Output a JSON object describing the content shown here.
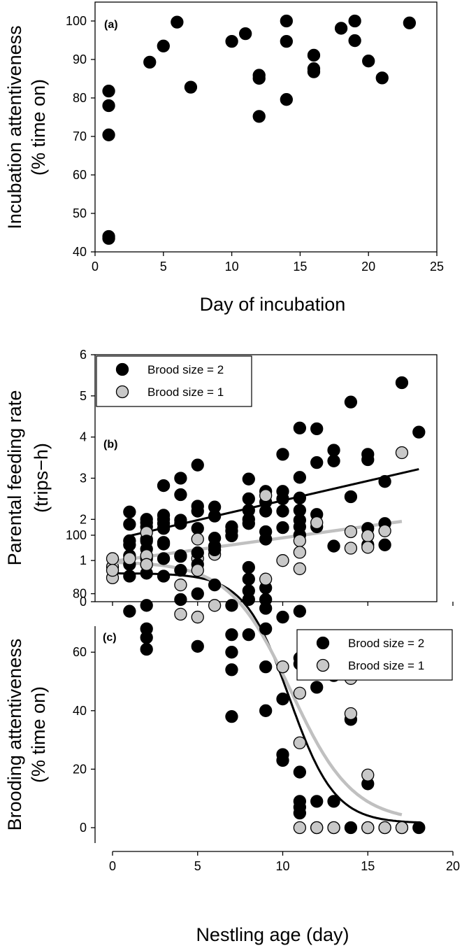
{
  "colors": {
    "brood2": "#000000",
    "brood1": "#c8c8c8",
    "fit2": "#000000",
    "fit1": "#c0c0c0"
  },
  "chart_data": [
    {
      "id": "a",
      "type": "scatter",
      "panel_label": "(a)",
      "xlabel": "Day of incubation",
      "ylabel_lines": [
        "Incubation attentiveness",
        "(% time on)"
      ],
      "xlim": [
        0,
        25
      ],
      "ylim": [
        40,
        105
      ],
      "xticks": [
        "0",
        "5",
        "10",
        "15",
        "20",
        "25"
      ],
      "yticks": [
        "40",
        "50",
        "60",
        "70",
        "80",
        "90",
        "100"
      ],
      "series": [
        {
          "name": "Incubation",
          "color": "#000000",
          "points": [
            [
              1,
              81.8
            ],
            [
              1,
              78
            ],
            [
              1,
              70.4
            ],
            [
              1,
              44
            ],
            [
              1,
              43.5
            ],
            [
              4,
              89.3
            ],
            [
              5,
              93.5
            ],
            [
              6,
              99.7
            ],
            [
              7,
              82.8
            ],
            [
              10,
              94.7
            ],
            [
              11,
              96.7
            ],
            [
              12,
              85.9
            ],
            [
              12,
              85.1
            ],
            [
              12,
              75.2
            ],
            [
              14,
              100
            ],
            [
              14,
              94.7
            ],
            [
              14,
              79.6
            ],
            [
              16,
              91.1
            ],
            [
              16,
              87.6
            ],
            [
              16,
              86.8
            ],
            [
              18,
              98.1
            ],
            [
              19,
              100
            ],
            [
              19,
              94.9
            ],
            [
              20,
              89.6
            ],
            [
              21,
              85.2
            ],
            [
              23,
              99.5
            ]
          ]
        }
      ]
    },
    {
      "id": "b",
      "type": "scatter",
      "panel_label": "(b)",
      "xlabel": "",
      "ylabel_lines": [
        "Parental feeding rate",
        "(trips−h)"
      ],
      "xlim": [
        0,
        20
      ],
      "ylim": [
        0,
        6
      ],
      "xticks": [
        "",
        "",
        "",
        "",
        ""
      ],
      "yticks": [
        "0",
        "1",
        "2",
        "3",
        "4",
        "5",
        "6"
      ],
      "legend": [
        "Brood size = 2",
        "Brood size = 1"
      ],
      "legend_position": "top-left",
      "series": [
        {
          "name": "Brood size = 2",
          "color": "#000000",
          "points": [
            [
              1,
              2.18
            ],
            [
              1,
              1.88
            ],
            [
              1,
              1.48
            ],
            [
              1,
              1.38
            ],
            [
              2,
              2.0
            ],
            [
              2,
              1.92
            ],
            [
              2,
              1.82
            ],
            [
              2,
              1.52
            ],
            [
              2,
              1.28
            ],
            [
              2,
              0.9
            ],
            [
              3,
              2.82
            ],
            [
              3,
              2.1
            ],
            [
              3,
              2.0
            ],
            [
              3,
              1.9
            ],
            [
              3,
              1.78
            ],
            [
              3,
              1.44
            ],
            [
              4,
              3.0
            ],
            [
              4,
              2.6
            ],
            [
              4,
              1.98
            ],
            [
              4,
              1.9
            ],
            [
              5,
              3.32
            ],
            [
              5,
              2.32
            ],
            [
              5,
              2.2
            ],
            [
              5,
              1.78
            ],
            [
              6,
              2.3
            ],
            [
              6,
              2.08
            ],
            [
              6,
              1.35
            ],
            [
              7,
              1.82
            ],
            [
              7,
              1.72
            ],
            [
              7,
              1.6
            ],
            [
              8,
              2.98
            ],
            [
              8,
              2.5
            ],
            [
              8,
              2.22
            ],
            [
              8,
              2.0
            ],
            [
              8,
              1.9
            ],
            [
              9,
              2.68
            ],
            [
              9,
              2.42
            ],
            [
              9,
              2.2
            ],
            [
              9,
              1.7
            ],
            [
              9,
              1.52
            ],
            [
              10,
              3.58
            ],
            [
              10,
              2.68
            ],
            [
              10,
              2.5
            ],
            [
              10,
              2.2
            ],
            [
              10,
              1.8
            ],
            [
              11,
              4.22
            ],
            [
              11,
              3.02
            ],
            [
              11,
              2.52
            ],
            [
              11,
              2.22
            ],
            [
              11,
              1.98
            ],
            [
              11,
              1.82
            ],
            [
              11,
              1.62
            ],
            [
              12,
              4.2
            ],
            [
              12,
              3.38
            ],
            [
              12,
              2.12
            ],
            [
              12,
              1.82
            ],
            [
              13,
              3.68
            ],
            [
              13,
              3.42
            ],
            [
              13,
              1.35
            ],
            [
              14,
              4.85
            ],
            [
              14,
              2.55
            ],
            [
              15,
              3.58
            ],
            [
              15,
              3.45
            ],
            [
              15,
              1.78
            ],
            [
              15,
              1.38
            ],
            [
              16,
              2.92
            ],
            [
              16,
              1.9
            ],
            [
              16,
              1.38
            ],
            [
              17,
              5.32
            ],
            [
              18,
              4.12
            ]
          ]
        },
        {
          "name": "Brood size = 1",
          "color": "#c8c8c8",
          "points": [
            [
              0,
              0.85
            ],
            [
              0,
              0.58
            ],
            [
              2,
              1.68
            ],
            [
              4,
              1.1
            ],
            [
              5,
              1.52
            ],
            [
              5,
              1.05
            ],
            [
              6,
              1.15
            ],
            [
              9,
              2.58
            ],
            [
              10,
              1.0
            ],
            [
              11,
              1.48
            ],
            [
              11,
              1.2
            ],
            [
              11,
              0.8
            ],
            [
              12,
              1.92
            ],
            [
              14,
              1.7
            ],
            [
              14,
              1.3
            ],
            [
              15,
              1.6
            ],
            [
              15,
              1.32
            ],
            [
              16,
              1.72
            ],
            [
              17,
              3.62
            ]
          ]
        }
      ],
      "fits": [
        {
          "name": "Brood size = 2 fit",
          "color": "#000000",
          "from": [
            1,
            1.6
          ],
          "to": [
            18,
            3.22
          ]
        },
        {
          "name": "Brood size = 1 fit",
          "color": "#c0c0c0",
          "from": [
            0,
            0.98
          ],
          "to": [
            17,
            1.95
          ]
        }
      ]
    },
    {
      "id": "c",
      "type": "scatter",
      "panel_label": "(c)",
      "xlabel": "Nestling age (day)",
      "ylabel_lines": [
        "Brooding attentiveness",
        "(% time on)"
      ],
      "xlim": [
        0,
        20
      ],
      "ylim": [
        0,
        105
      ],
      "xticks": [
        "0",
        "5",
        "10",
        "15",
        "20"
      ],
      "yticks": [
        "0",
        "20",
        "40",
        "60",
        "80",
        "100"
      ],
      "legend": [
        "Brood size = 2",
        "Brood size = 1"
      ],
      "legend_position": "top-right",
      "series": [
        {
          "name": "Brood size = 2",
          "color": "#000000",
          "points": [
            [
              1,
              93
            ],
            [
              1,
              90
            ],
            [
              1,
              86
            ],
            [
              1,
              74
            ],
            [
              2,
              98
            ],
            [
              2,
              92
            ],
            [
              2,
              87
            ],
            [
              2,
              76
            ],
            [
              2,
              68
            ],
            [
              2,
              65
            ],
            [
              2,
              61
            ],
            [
              3,
              97
            ],
            [
              3,
              92
            ],
            [
              3,
              86
            ],
            [
              4,
              93
            ],
            [
              4,
              88
            ],
            [
              4,
              78
            ],
            [
              5,
              94
            ],
            [
              5,
              90
            ],
            [
              5,
              80
            ],
            [
              5,
              62
            ],
            [
              6,
              99
            ],
            [
              6,
              95
            ],
            [
              6,
              83
            ],
            [
              7,
              76
            ],
            [
              7,
              66
            ],
            [
              7,
              60
            ],
            [
              7,
              54
            ],
            [
              7,
              38
            ],
            [
              8,
              89
            ],
            [
              8,
              85
            ],
            [
              8,
              81
            ],
            [
              8,
              78
            ],
            [
              8,
              66
            ],
            [
              9,
              82
            ],
            [
              9,
              78
            ],
            [
              9,
              75
            ],
            [
              9,
              68
            ],
            [
              9,
              55
            ],
            [
              9,
              40
            ],
            [
              10,
              72
            ],
            [
              10,
              44
            ],
            [
              10,
              25
            ],
            [
              10,
              23
            ],
            [
              11,
              74
            ],
            [
              11,
              58
            ],
            [
              11,
              56
            ],
            [
              11,
              19
            ],
            [
              11,
              9
            ],
            [
              11,
              7
            ],
            [
              11,
              5
            ],
            [
              12,
              62
            ],
            [
              12,
              48
            ],
            [
              12,
              9
            ],
            [
              12,
              0
            ],
            [
              13,
              52
            ],
            [
              13,
              9
            ],
            [
              13,
              0
            ],
            [
              14,
              37
            ],
            [
              14,
              0
            ],
            [
              15,
              15
            ],
            [
              15,
              0
            ],
            [
              16,
              0
            ],
            [
              17,
              0
            ],
            [
              18,
              0
            ]
          ]
        },
        {
          "name": "Brood size = 1",
          "color": "#c8c8c8",
          "points": [
            [
              0,
              92
            ],
            [
              0,
              88
            ],
            [
              1,
              92
            ],
            [
              2,
              93
            ],
            [
              2,
              90
            ],
            [
              4,
              73
            ],
            [
              4,
              83
            ],
            [
              5,
              88
            ],
            [
              5,
              72
            ],
            [
              6,
              76
            ],
            [
              9,
              85
            ],
            [
              10,
              55
            ],
            [
              11,
              46
            ],
            [
              11,
              29
            ],
            [
              11,
              0
            ],
            [
              12,
              0
            ],
            [
              13,
              0
            ],
            [
              14,
              51
            ],
            [
              14,
              39
            ],
            [
              15,
              18
            ],
            [
              15,
              0
            ],
            [
              16,
              0
            ],
            [
              17,
              0
            ]
          ]
        }
      ],
      "fits": [
        {
          "name": "Brood size = 2 fit",
          "color": "#000000",
          "kind": "logistic",
          "low": 1.5,
          "high": 87,
          "mid": 10.4,
          "k": 0.75,
          "x_range": [
            0,
            18
          ]
        },
        {
          "name": "Brood size = 1 fit",
          "color": "#c0c0c0",
          "kind": "logistic",
          "low": 2,
          "high": 91,
          "mid": 10.5,
          "k": 0.55,
          "x_range": [
            0,
            17
          ]
        }
      ]
    }
  ]
}
